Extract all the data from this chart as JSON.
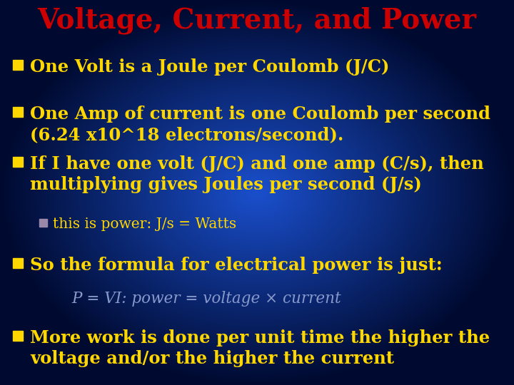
{
  "title": "Voltage, Current, and Power",
  "title_color": "#CC0000",
  "title_fontsize": 28,
  "bg_color_center": "#1a4fcc",
  "bg_color_edge": "#000a30",
  "bullet_color": "#FFD700",
  "sub_bullet_color": "#CC99CC",
  "formula_color": "#8899CC",
  "bullet_square_color": "#FFD700",
  "sub_bullet_square_color": "#9988AA",
  "bullets": [
    {
      "text": "One Volt is a Joule per Coulomb (J/C)",
      "level": 0,
      "bold": true,
      "fontsize": 17.5
    },
    {
      "text": "One Amp of current is one Coulomb per second\n(6.24 x10^18 electrons/second).",
      "level": 0,
      "bold": true,
      "fontsize": 17.5
    },
    {
      "text": "If I have one volt (J/C) and one amp (C/s), then\nmultiplying gives Joules per second (J/s)",
      "level": 0,
      "bold": true,
      "fontsize": 17.5
    },
    {
      "text": "this is power: J/s = Watts",
      "level": 1,
      "bold": false,
      "fontsize": 14.5
    },
    {
      "text": "So the formula for electrical power is just:",
      "level": 0,
      "bold": true,
      "fontsize": 17.5
    },
    {
      "text": "P = VI: power = voltage × current",
      "level": 2,
      "bold": false,
      "fontsize": 15.5,
      "italic": true
    },
    {
      "text": "More work is done per unit time the higher the\nvoltage and/or the higher the current",
      "level": 0,
      "bold": true,
      "fontsize": 17.5
    }
  ]
}
